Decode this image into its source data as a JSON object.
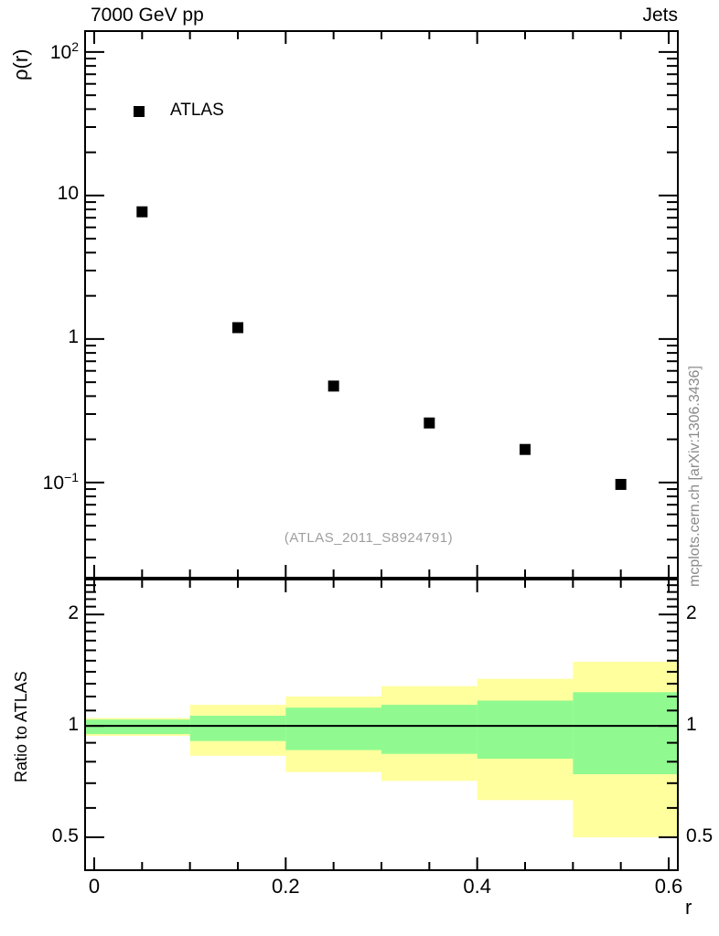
{
  "watermark_text": "(ATLAS_2011_S8924791)",
  "side_note_text": "mcplots.cern.ch [arXiv:1306.3436]",
  "colors": {
    "axis": "#000000",
    "marker": "#000000",
    "ratio_reference_line": "#000000",
    "band_outer": "#ffff9e",
    "band_inner": "#90fa90",
    "watermark": "#9e9e9e",
    "side_note": "#8a8a8a"
  },
  "chart_data": [
    {
      "type": "scatter",
      "name": "main-panel",
      "title": "7000 GeV pp",
      "title_right": "Jets",
      "ylabel": "ρ(r)",
      "yscale": "log",
      "grid": false,
      "legend_position": "top-left-inside",
      "xlim": [
        -0.0105,
        0.6105
      ],
      "ylim": [
        0.0214,
        142
      ],
      "series": [
        {
          "name": "ATLAS",
          "marker": "filled-square",
          "x": [
            0.05,
            0.15,
            0.25,
            0.35,
            0.45,
            0.55
          ],
          "y": [
            7.7,
            1.2,
            0.47,
            0.26,
            0.17,
            0.097
          ]
        }
      ],
      "yticks_major": [
        {
          "v": 100,
          "mantissa": "10",
          "exponent": "2"
        },
        {
          "v": 10,
          "mantissa": "10",
          "exponent": ""
        },
        {
          "v": 1,
          "mantissa": "1",
          "exponent": ""
        },
        {
          "v": 0.1,
          "mantissa": "10",
          "exponent": "−1"
        }
      ],
      "yticks_minor": [
        0.03,
        0.04,
        0.05,
        0.06,
        0.07,
        0.08,
        0.09,
        0.2,
        0.3,
        0.4,
        0.5,
        0.6,
        0.7,
        0.8,
        0.9,
        2,
        3,
        4,
        5,
        6,
        7,
        8,
        9,
        20,
        30,
        40,
        50,
        60,
        70,
        80,
        90
      ],
      "xticks_major": [
        0,
        0.2,
        0.4,
        0.6
      ],
      "xticks_minor": [
        0.05,
        0.1,
        0.15,
        0.25,
        0.3,
        0.35,
        0.45,
        0.5,
        0.55
      ]
    },
    {
      "type": "area",
      "name": "ratio-panel",
      "ylabel": "Ratio to ATLAS",
      "xlabel": "r",
      "yscale": "log",
      "xlim": [
        -0.0105,
        0.6105
      ],
      "ylim": [
        0.405,
        2.5
      ],
      "reference_line": 1,
      "bin_edges": [
        0,
        0.1,
        0.2,
        0.3,
        0.4,
        0.5,
        0.6
      ],
      "bands": [
        {
          "name": "outer-uncertainty",
          "lo": [
            0.94,
            0.83,
            0.75,
            0.71,
            0.63,
            0.5
          ],
          "hi": [
            1.05,
            1.14,
            1.2,
            1.28,
            1.34,
            1.49
          ]
        },
        {
          "name": "inner-uncertainty",
          "lo": [
            0.95,
            0.91,
            0.86,
            0.84,
            0.815,
            0.74
          ],
          "hi": [
            1.04,
            1.065,
            1.12,
            1.14,
            1.17,
            1.233
          ]
        }
      ],
      "yticks_major": [
        {
          "v": 2,
          "label": "2"
        },
        {
          "v": 1,
          "label": "1"
        },
        {
          "v": 0.5,
          "label": "0.5"
        }
      ],
      "yticks_minor": [
        2.4,
        2.3,
        2.2,
        2.1,
        1.9,
        1.8,
        1.7,
        1.6,
        1.5,
        1.4,
        1.3,
        1.2,
        1.1,
        0.9,
        0.8,
        0.7,
        0.6
      ],
      "xticks_major": [
        {
          "v": 0,
          "label": "0"
        },
        {
          "v": 0.2,
          "label": "0.2"
        },
        {
          "v": 0.4,
          "label": "0.4"
        },
        {
          "v": 0.6,
          "label": "0.6"
        }
      ],
      "xticks_minor": [
        0.05,
        0.1,
        0.15,
        0.25,
        0.3,
        0.35,
        0.45,
        0.5,
        0.55
      ]
    }
  ]
}
